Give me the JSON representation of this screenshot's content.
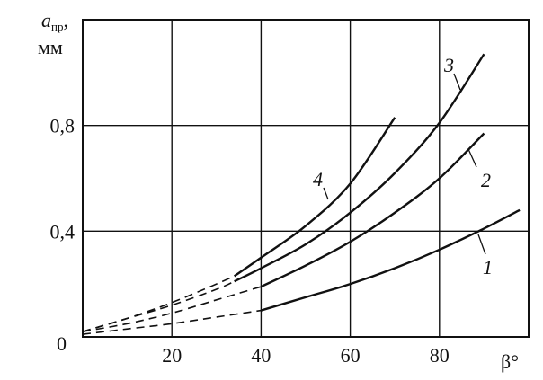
{
  "chart_data": {
    "type": "line",
    "title": "",
    "ylabel": {
      "symbol": "a",
      "subscript": "пр",
      "suffix": ",",
      "unit": "мм"
    },
    "xlabel": "β°",
    "xlim": [
      0,
      100
    ],
    "ylim": [
      0,
      1.2
    ],
    "grid": true,
    "x_ticks": [
      {
        "value": 20,
        "label": "20"
      },
      {
        "value": 40,
        "label": "40"
      },
      {
        "value": 60,
        "label": "60"
      },
      {
        "value": 80,
        "label": "80"
      }
    ],
    "y_ticks": [
      {
        "value": 0.4,
        "label": "0,4"
      },
      {
        "value": 0.8,
        "label": "0,8"
      }
    ],
    "origin_label": "0",
    "series": [
      {
        "name": "1",
        "dashed": {
          "x": [
            0,
            10,
            20,
            30,
            40
          ],
          "y": [
            0.01,
            0.03,
            0.05,
            0.075,
            0.1
          ]
        },
        "solid": {
          "x": [
            40,
            50,
            60,
            70,
            80,
            90,
            98
          ],
          "y": [
            0.1,
            0.15,
            0.2,
            0.26,
            0.33,
            0.41,
            0.48
          ]
        }
      },
      {
        "name": "2",
        "dashed": {
          "x": [
            0,
            10,
            20,
            30,
            40
          ],
          "y": [
            0.02,
            0.05,
            0.09,
            0.14,
            0.19
          ]
        },
        "solid": {
          "x": [
            40,
            50,
            60,
            70,
            80,
            90
          ],
          "y": [
            0.19,
            0.27,
            0.36,
            0.47,
            0.6,
            0.77
          ]
        }
      },
      {
        "name": "3",
        "dashed": {
          "x": [
            0,
            10,
            20,
            30,
            34
          ],
          "y": [
            0.02,
            0.07,
            0.12,
            0.18,
            0.21
          ]
        },
        "solid": {
          "x": [
            34,
            40,
            50,
            60,
            70,
            80,
            90
          ],
          "y": [
            0.21,
            0.26,
            0.35,
            0.47,
            0.62,
            0.81,
            1.07
          ]
        }
      },
      {
        "name": "4",
        "dashed": {
          "x": [
            0,
            10,
            20,
            30,
            34
          ],
          "y": [
            0.02,
            0.07,
            0.13,
            0.2,
            0.23
          ]
        },
        "solid": {
          "x": [
            34,
            40,
            50,
            60,
            70
          ],
          "y": [
            0.23,
            0.3,
            0.42,
            0.58,
            0.83
          ]
        }
      }
    ]
  }
}
